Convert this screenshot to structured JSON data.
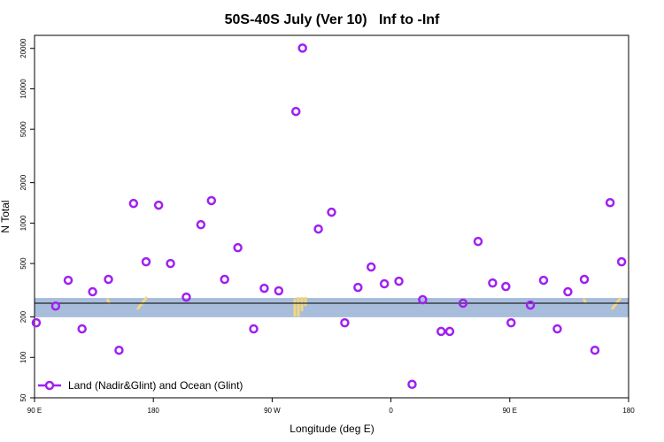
{
  "chart_data": {
    "type": "scatter",
    "title": "50S-40S July (Ver 10)   Inf to -Inf",
    "xlabel": "Longitude (deg E)",
    "ylabel": "N Total",
    "log_y": true,
    "legend_position": "bottom left",
    "xlim": [
      90,
      540
    ],
    "ylim": [
      50,
      25000
    ],
    "xticks": [
      {
        "value": 90,
        "label": "90 E"
      },
      {
        "value": 180,
        "label": "180"
      },
      {
        "value": 270,
        "label": "90 W"
      },
      {
        "value": 360,
        "label": "0"
      },
      {
        "value": 450,
        "label": "90 E"
      },
      {
        "value": 540,
        "label": "180"
      }
    ],
    "yticks": [
      50,
      100,
      200,
      500,
      1000,
      2000,
      5000,
      10000,
      20000
    ],
    "reference_band": [
      199,
      277
    ],
    "reference_band_color": "#a7bddb",
    "reference_line": 253,
    "series": [
      {
        "name": "Land (Nadir&Glint) and Ocean (Glint)",
        "color": "#a020f0",
        "x": [
          91.3,
          106,
          115.5,
          126,
          134,
          146,
          154,
          165,
          174.5,
          184,
          193,
          205,
          216,
          224,
          234,
          244,
          256,
          264,
          275,
          288,
          293,
          305,
          315,
          325,
          335,
          345,
          355,
          366,
          376,
          384,
          398,
          404.5,
          414.6,
          426,
          437,
          447,
          451,
          465.6,
          475.6,
          486,
          494,
          506.5,
          514.5,
          526,
          534.7
        ],
        "values": [
          181,
          241,
          375,
          163,
          308,
          381,
          113,
          1400,
          515,
          1360,
          500,
          281,
          973,
          1470,
          381,
          656,
          163,
          327,
          313,
          6780,
          20100,
          903,
          1205,
          181,
          332,
          471,
          353,
          369,
          63,
          269,
          156,
          156,
          253,
          730,
          358,
          337,
          181,
          245,
          375,
          163,
          308,
          381,
          113,
          1420,
          515
        ]
      }
    ]
  }
}
